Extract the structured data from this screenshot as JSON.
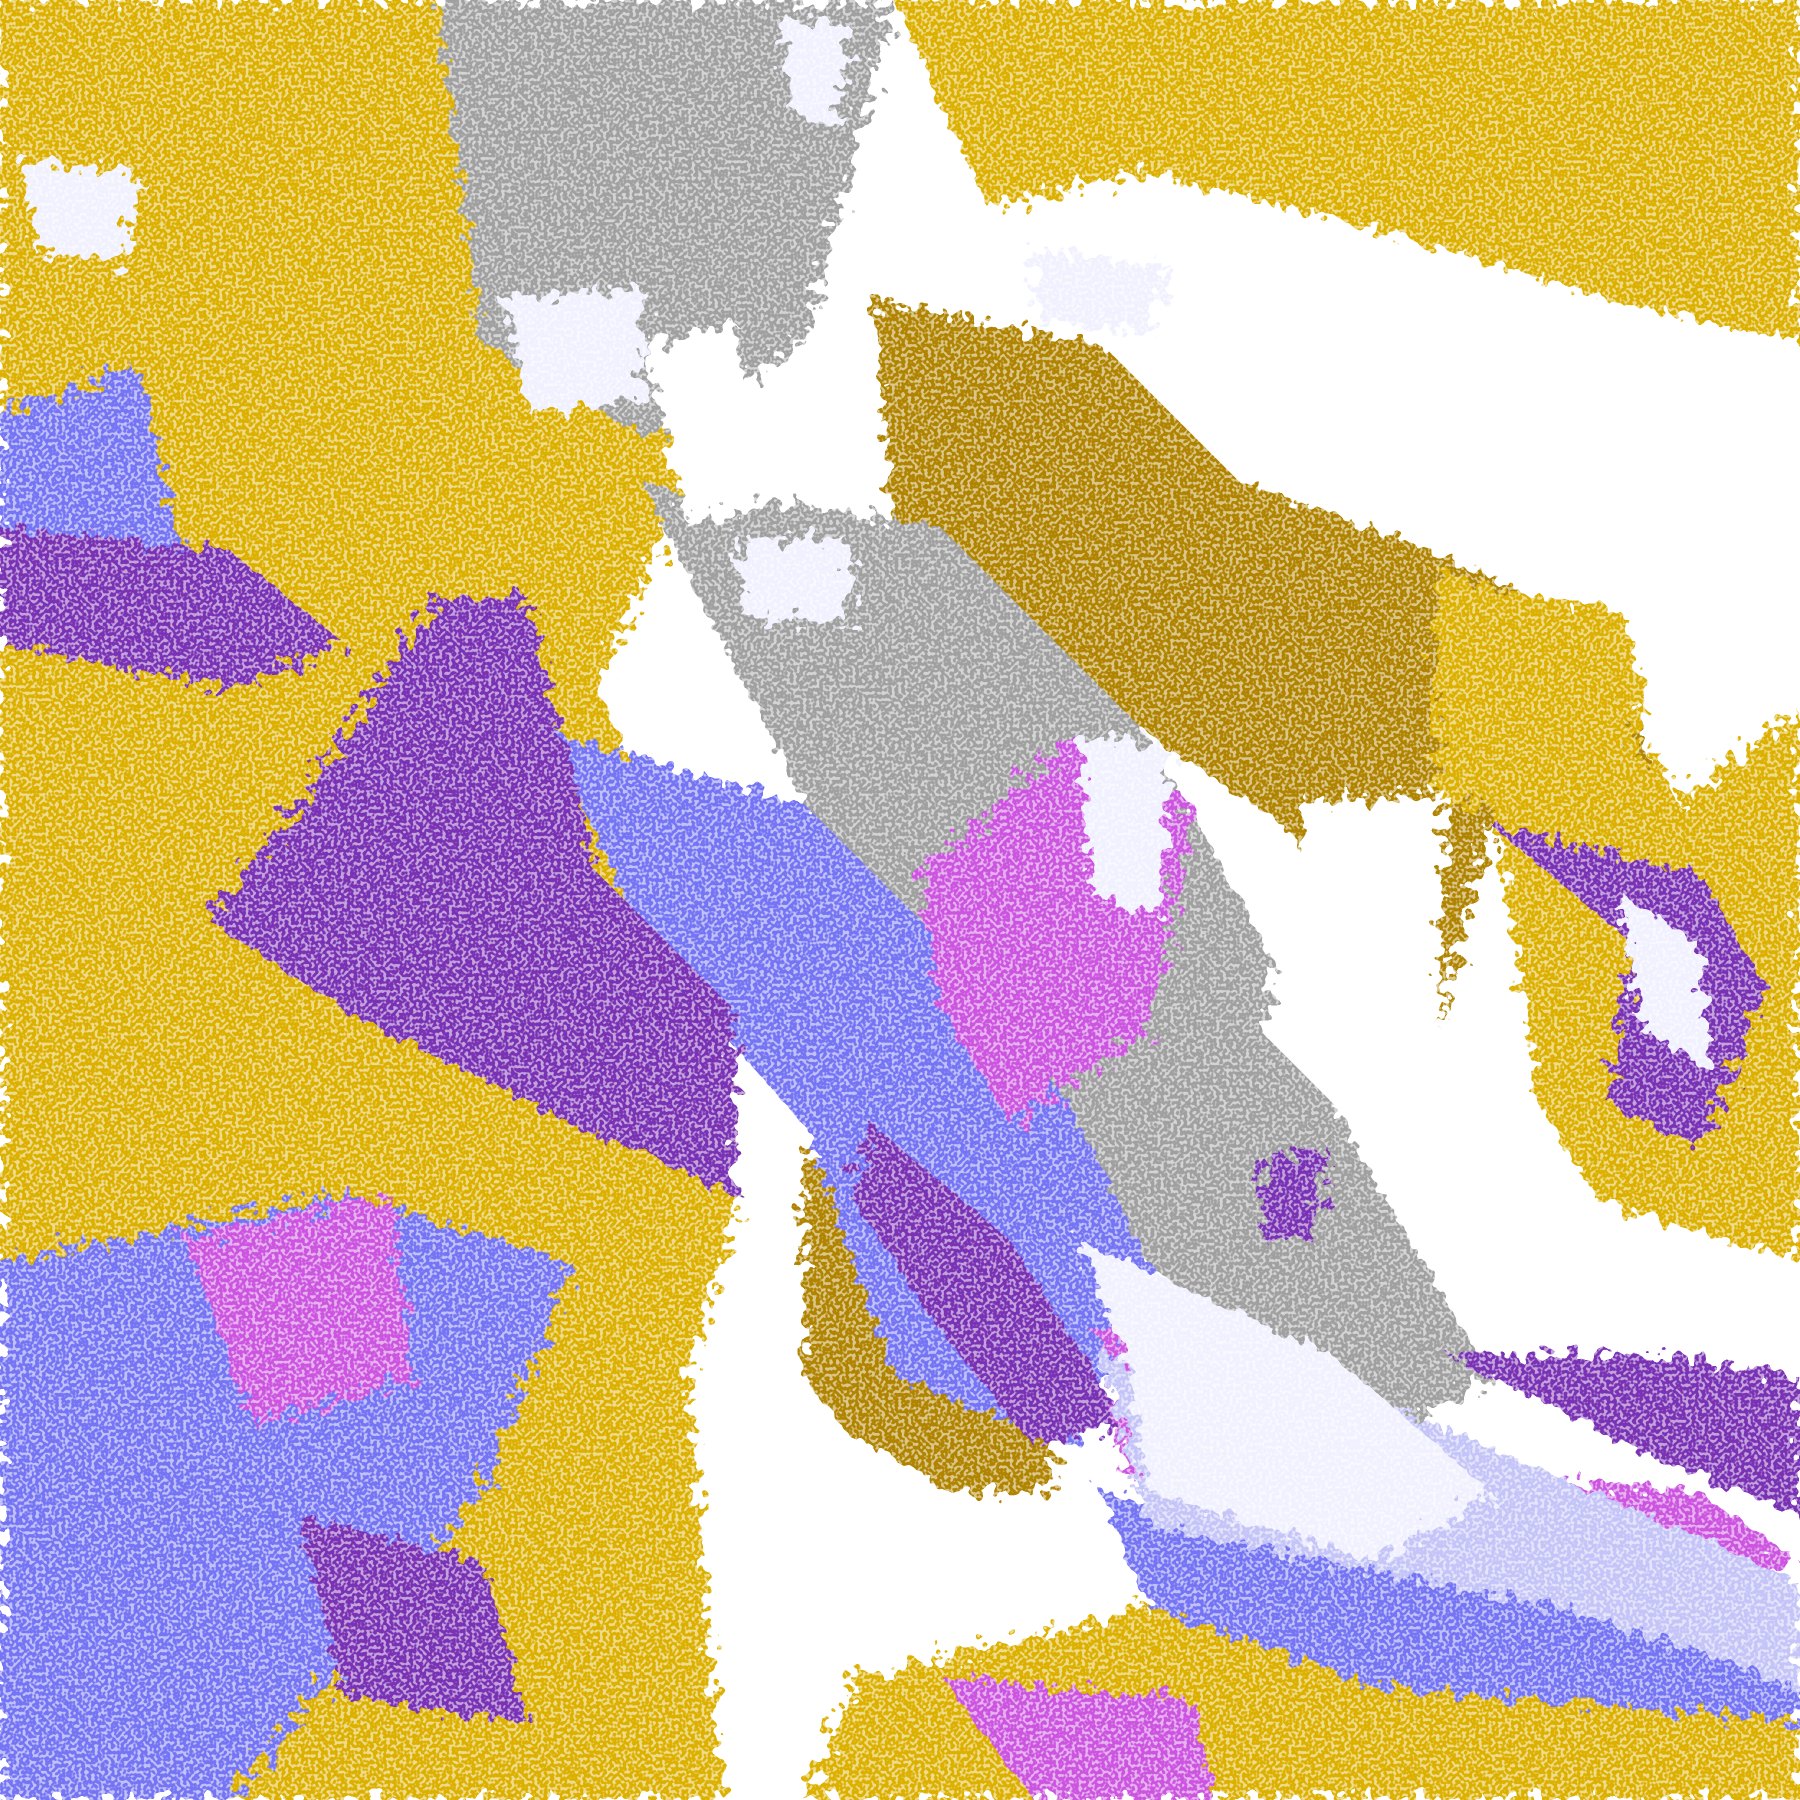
{
  "map": {
    "palette": {
      "background": "#ffffff",
      "gold": "#dcb000",
      "dark_gold": "#b08400",
      "purple": "#7a32b4",
      "violet_blue": "#7474f4",
      "magenta": "#cc55e0",
      "pale_lavender": "#f0f0ff",
      "light_periwinkle": "#c4c4f8",
      "gray": "#a0a0a0",
      "dark_gray": "#8a8a8a"
    },
    "classes": [
      "dense-gold",
      "dark-gold",
      "deep-purple",
      "violet-blue",
      "magenta",
      "cloud-lavender",
      "periwinkle",
      "gray",
      "clear"
    ]
  }
}
